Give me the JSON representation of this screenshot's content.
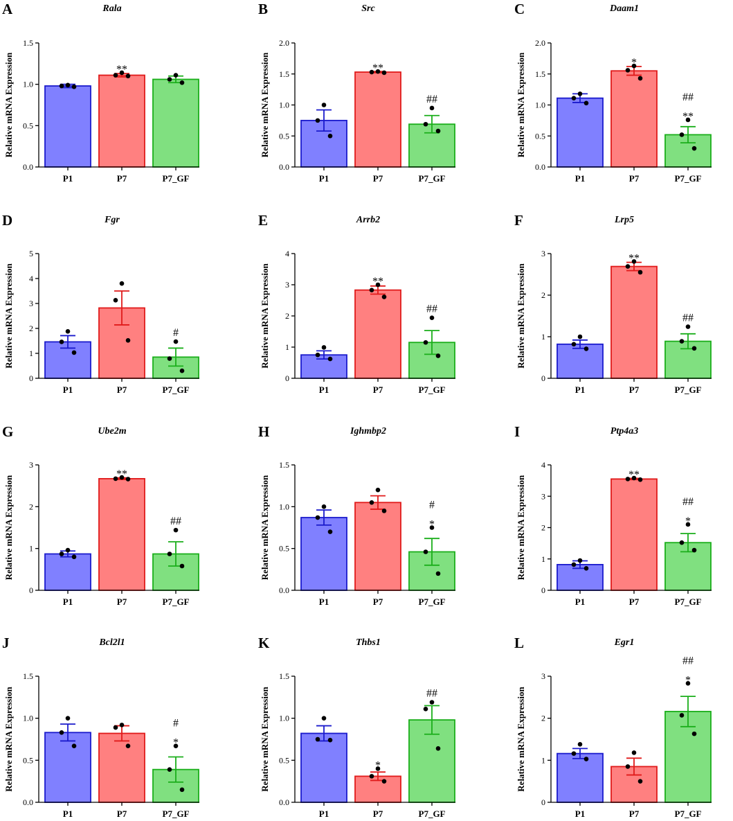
{
  "chart_data": [
    {
      "letter": "A",
      "type": "bar",
      "title": "Rala",
      "ylabel": "Relative mRNA Expression",
      "ylim": [
        0,
        1.5
      ],
      "yticks": [
        "0.0",
        "0.5",
        "1.0",
        "1.5"
      ],
      "categories": [
        "P1",
        "P7",
        "P7_GF"
      ],
      "values": [
        0.98,
        1.11,
        1.06
      ],
      "errors": [
        0.02,
        0.02,
        0.04
      ],
      "points": [
        [
          0.99,
          0.98,
          0.97
        ],
        [
          1.14,
          1.11,
          1.1
        ],
        [
          1.11,
          1.06,
          1.02
        ]
      ],
      "annotations": [
        "",
        "**",
        ""
      ]
    },
    {
      "letter": "B",
      "type": "bar",
      "title": "Src",
      "ylabel": "Relative mRNA Expression",
      "ylim": [
        0,
        2.0
      ],
      "yticks": [
        "0.0",
        "0.5",
        "1.0",
        "1.5",
        "2.0"
      ],
      "categories": [
        "P1",
        "P7",
        "P7_GF"
      ],
      "values": [
        0.75,
        1.53,
        0.69
      ],
      "errors": [
        0.17,
        0.01,
        0.14
      ],
      "points": [
        [
          1.0,
          0.75,
          0.5
        ],
        [
          1.54,
          1.53,
          1.52
        ],
        [
          0.95,
          0.69,
          0.58
        ]
      ],
      "annotations": [
        "",
        "**",
        "##"
      ]
    },
    {
      "letter": "C",
      "type": "bar",
      "title": "Daam1",
      "ylabel": "Relative mRNA Expression",
      "ylim": [
        0,
        2.0
      ],
      "yticks": [
        "0.0",
        "0.5",
        "1.0",
        "1.5",
        "2.0"
      ],
      "categories": [
        "P1",
        "P7",
        "P7_GF"
      ],
      "values": [
        1.11,
        1.55,
        0.52
      ],
      "errors": [
        0.07,
        0.07,
        0.13
      ],
      "points": [
        [
          1.18,
          1.11,
          1.03
        ],
        [
          1.63,
          1.56,
          1.43
        ],
        [
          0.76,
          0.52,
          0.3
        ]
      ],
      "annotations": [
        "",
        "*",
        "##\n**"
      ]
    },
    {
      "letter": "D",
      "type": "bar",
      "title": "Fgr",
      "ylabel": "Relative mRNA Expression",
      "ylim": [
        0,
        5
      ],
      "yticks": [
        "0",
        "1",
        "2",
        "3",
        "4",
        "5"
      ],
      "categories": [
        "P1",
        "P7",
        "P7_GF"
      ],
      "values": [
        1.46,
        2.82,
        0.85
      ],
      "errors": [
        0.25,
        0.68,
        0.36
      ],
      "points": [
        [
          1.88,
          1.46,
          1.03
        ],
        [
          3.8,
          3.13,
          1.52
        ],
        [
          1.47,
          0.79,
          0.3
        ]
      ],
      "annotations": [
        "",
        "",
        "#"
      ]
    },
    {
      "letter": "E",
      "type": "bar",
      "title": "Arrb2",
      "ylabel": "Relative mRNA Expression",
      "ylim": [
        0,
        4
      ],
      "yticks": [
        "0",
        "1",
        "2",
        "3",
        "4"
      ],
      "categories": [
        "P1",
        "P7",
        "P7_GF"
      ],
      "values": [
        0.75,
        2.83,
        1.15
      ],
      "errors": [
        0.13,
        0.13,
        0.38
      ],
      "points": [
        [
          0.99,
          0.75,
          0.62
        ],
        [
          3.0,
          2.83,
          2.61
        ],
        [
          1.94,
          1.15,
          0.72
        ]
      ],
      "annotations": [
        "",
        "**",
        "##"
      ]
    },
    {
      "letter": "F",
      "type": "bar",
      "title": "Lrp5",
      "ylabel": "Relative mRNA Expression",
      "ylim": [
        0,
        3
      ],
      "yticks": [
        "0",
        "1",
        "2",
        "3"
      ],
      "categories": [
        "P1",
        "P7",
        "P7_GF"
      ],
      "values": [
        0.82,
        2.69,
        0.89
      ],
      "errors": [
        0.1,
        0.1,
        0.18
      ],
      "points": [
        [
          1.0,
          0.82,
          0.71
        ],
        [
          2.81,
          2.69,
          2.55
        ],
        [
          1.24,
          0.89,
          0.72
        ]
      ],
      "annotations": [
        "",
        "**",
        "##"
      ]
    },
    {
      "letter": "G",
      "type": "bar",
      "title": "Ube2m",
      "ylabel": "Relative mRNA Expression",
      "ylim": [
        0,
        3
      ],
      "yticks": [
        "0",
        "1",
        "2",
        "3"
      ],
      "categories": [
        "P1",
        "P7",
        "P7_GF"
      ],
      "values": [
        0.87,
        2.67,
        0.87
      ],
      "errors": [
        0.07,
        0.02,
        0.29
      ],
      "points": [
        [
          0.96,
          0.87,
          0.8
        ],
        [
          2.7,
          2.67,
          2.66
        ],
        [
          1.44,
          0.87,
          0.58
        ]
      ],
      "annotations": [
        "",
        "**",
        "##"
      ]
    },
    {
      "letter": "H",
      "type": "bar",
      "title": "Ighmbp2",
      "ylabel": "Relative mRNA Expression",
      "ylim": [
        0,
        1.5
      ],
      "yticks": [
        "0.0",
        "0.5",
        "1.0",
        "1.5"
      ],
      "categories": [
        "P1",
        "P7",
        "P7_GF"
      ],
      "values": [
        0.87,
        1.05,
        0.46
      ],
      "errors": [
        0.09,
        0.08,
        0.16
      ],
      "points": [
        [
          1.0,
          0.87,
          0.7
        ],
        [
          1.2,
          1.05,
          0.95
        ],
        [
          0.75,
          0.46,
          0.2
        ]
      ],
      "annotations": [
        "",
        "",
        "#\n*"
      ]
    },
    {
      "letter": "I",
      "type": "bar",
      "title": "Ptp4a3",
      "ylabel": "Relative mRNA Expression",
      "ylim": [
        0,
        4
      ],
      "yticks": [
        "0",
        "1",
        "2",
        "3",
        "4"
      ],
      "categories": [
        "P1",
        "P7",
        "P7_GF"
      ],
      "values": [
        0.82,
        3.55,
        1.52
      ],
      "errors": [
        0.12,
        0.02,
        0.29
      ],
      "points": [
        [
          0.95,
          0.82,
          0.7
        ],
        [
          3.58,
          3.55,
          3.53
        ],
        [
          2.1,
          1.52,
          1.28
        ]
      ],
      "annotations": [
        "",
        "**",
        "##\n*"
      ]
    },
    {
      "letter": "J",
      "type": "bar",
      "title": "Bcl2l1",
      "ylabel": "Relative mRNA Expression",
      "ylim": [
        0,
        1.5
      ],
      "yticks": [
        "0.0",
        "0.5",
        "1.0",
        "1.5"
      ],
      "categories": [
        "P1",
        "P7",
        "P7_GF"
      ],
      "values": [
        0.83,
        0.82,
        0.39
      ],
      "errors": [
        0.1,
        0.09,
        0.15
      ],
      "points": [
        [
          1.0,
          0.83,
          0.67
        ],
        [
          0.92,
          0.89,
          0.67
        ],
        [
          0.67,
          0.39,
          0.15
        ]
      ],
      "annotations": [
        "",
        "",
        "#\n*"
      ]
    },
    {
      "letter": "K",
      "type": "bar",
      "title": "Thbs1",
      "ylabel": "Relative mRNA Expression",
      "ylim": [
        0,
        1.5
      ],
      "yticks": [
        "0.0",
        "0.5",
        "1.0",
        "1.5"
      ],
      "categories": [
        "P1",
        "P7",
        "P7_GF"
      ],
      "values": [
        0.82,
        0.31,
        0.98
      ],
      "errors": [
        0.09,
        0.05,
        0.17
      ],
      "points": [
        [
          1.0,
          0.75,
          0.74
        ],
        [
          0.4,
          0.31,
          0.25
        ],
        [
          1.19,
          1.11,
          0.64
        ]
      ],
      "annotations": [
        "",
        "*",
        "##"
      ]
    },
    {
      "letter": "L",
      "type": "bar",
      "title": "Egr1",
      "ylabel": "Relative mRNA Expression",
      "ylim": [
        0,
        3
      ],
      "yticks": [
        "0",
        "1",
        "2",
        "3"
      ],
      "categories": [
        "P1",
        "P7",
        "P7_GF"
      ],
      "values": [
        1.16,
        0.85,
        2.16
      ],
      "errors": [
        0.12,
        0.2,
        0.36
      ],
      "points": [
        [
          1.38,
          1.16,
          1.03
        ],
        [
          1.18,
          0.85,
          0.5
        ],
        [
          2.83,
          2.07,
          1.63
        ]
      ],
      "annotations": [
        "",
        "",
        "##\n*"
      ]
    }
  ],
  "colors": {
    "P1_fill": "#8080ff",
    "P1_stroke": "#1a1acc",
    "P7_fill": "#ff8080",
    "P7_stroke": "#e01a1a",
    "P7_GF_fill": "#80e080",
    "P7_GF_stroke": "#1aae1a",
    "point": "#000000"
  }
}
